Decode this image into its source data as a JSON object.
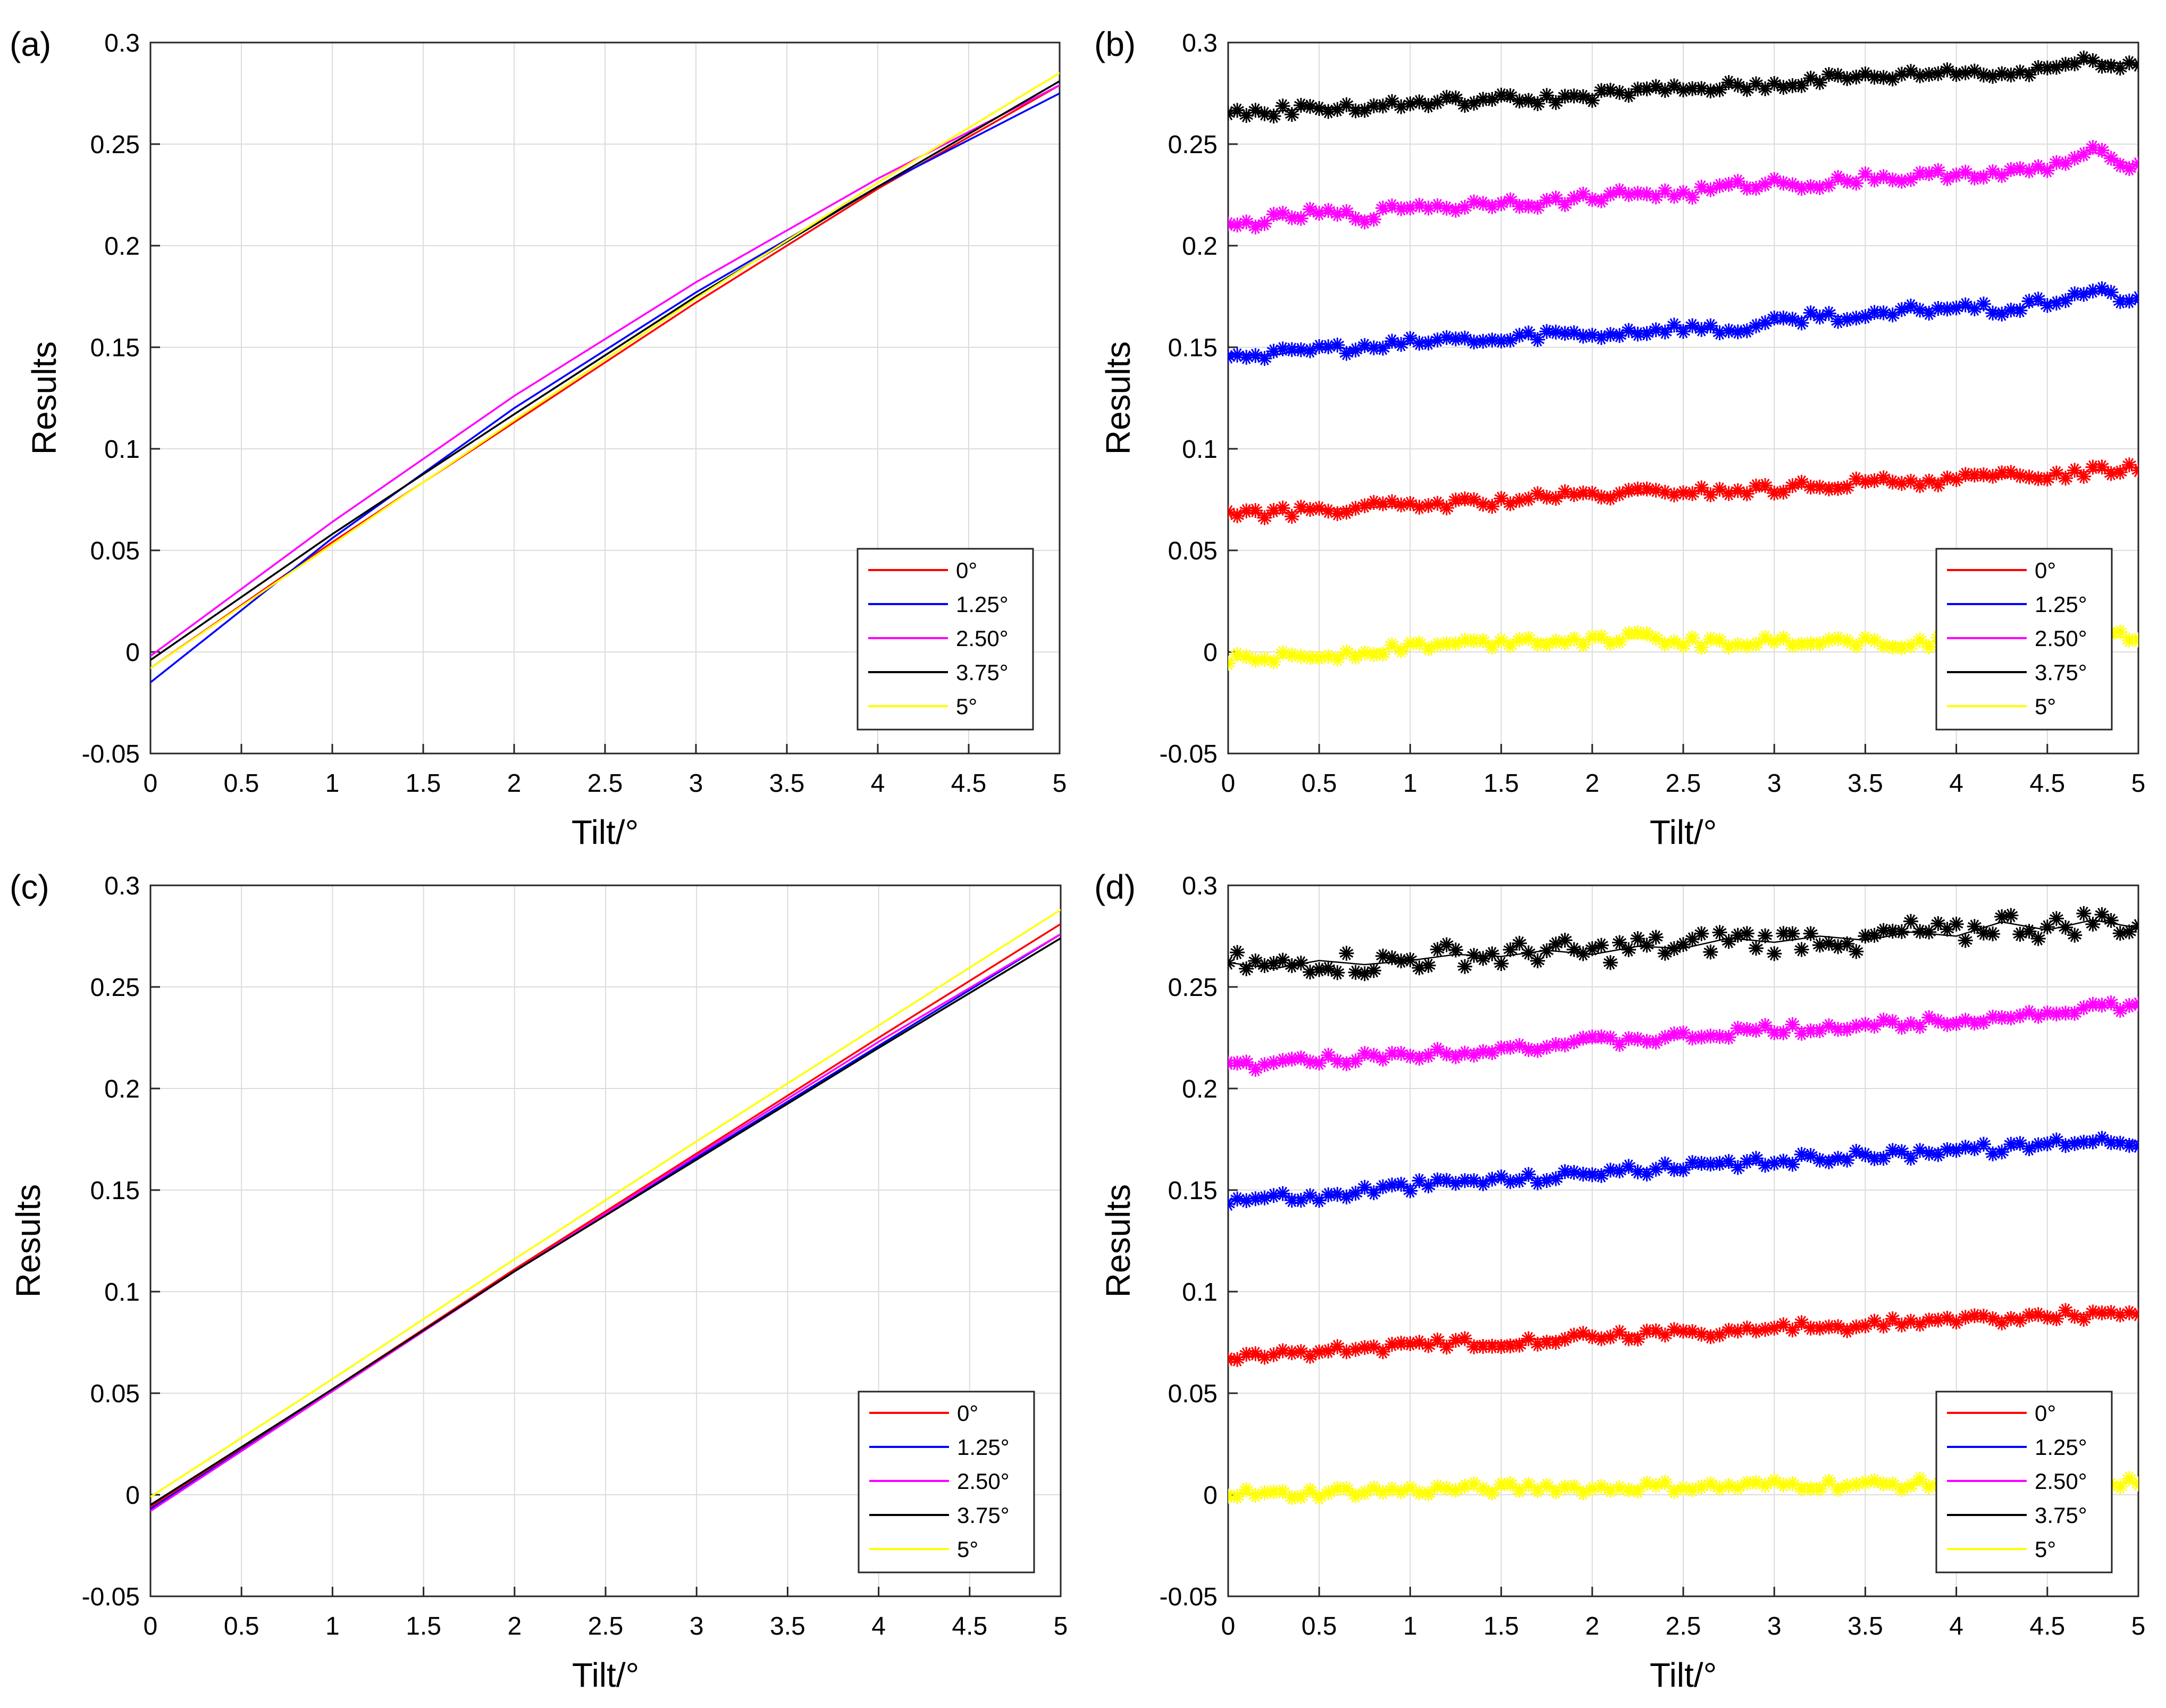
{
  "figure": {
    "panel_labels": [
      "(a)",
      "(b)",
      "(c)",
      "(d)"
    ]
  },
  "colors": {
    "red": "#ff0000",
    "blue": "#0000ff",
    "magenta": "#ff00ff",
    "black": "#000000",
    "yellow": "#ffff00"
  },
  "chart_data": [
    {
      "type": "line",
      "panel": "(a)",
      "xlabel": "Tilt/°",
      "ylabel": "Results",
      "xlim": [
        0,
        5
      ],
      "ylim": [
        -0.05,
        0.3
      ],
      "xticks": [
        "0",
        "0.5",
        "1",
        "1.5",
        "2",
        "2.5",
        "3",
        "3.5",
        "4",
        "4.5",
        "5"
      ],
      "yticks": [
        "-0.05",
        "0",
        "0.05",
        "0.1",
        "0.15",
        "0.2",
        "0.25",
        "0.3"
      ],
      "grid": true,
      "legend_position": "bottom-right",
      "x": [
        0,
        1,
        2,
        3,
        4,
        5
      ],
      "series": [
        {
          "name": "0°",
          "color": "#ff0000",
          "values": [
            -0.008,
            0.054,
            0.113,
            0.172,
            0.228,
            0.279
          ]
        },
        {
          "name": "1.25°",
          "color": "#0000ff",
          "values": [
            -0.015,
            0.056,
            0.12,
            0.177,
            0.229,
            0.275
          ]
        },
        {
          "name": "2.50°",
          "color": "#ff00ff",
          "values": [
            -0.002,
            0.064,
            0.126,
            0.182,
            0.233,
            0.279
          ]
        },
        {
          "name": "3.75°",
          "color": "#000000",
          "values": [
            -0.004,
            0.058,
            0.117,
            0.175,
            0.229,
            0.281
          ]
        },
        {
          "name": "5°",
          "color": "#ffff00",
          "values": [
            -0.008,
            0.053,
            0.114,
            0.174,
            0.231,
            0.285
          ]
        }
      ]
    },
    {
      "type": "line",
      "panel": "(b)",
      "marker": "asterisk",
      "xlabel": "Tilt/°",
      "ylabel": "Results",
      "xlim": [
        0,
        5
      ],
      "ylim": [
        -0.05,
        0.3
      ],
      "xticks": [
        "0",
        "0.5",
        "1",
        "1.5",
        "2",
        "2.5",
        "3",
        "3.5",
        "4",
        "4.5",
        "5"
      ],
      "yticks": [
        "-0.05",
        "0",
        "0.05",
        "0.1",
        "0.15",
        "0.2",
        "0.25",
        "0.3"
      ],
      "grid": true,
      "legend_position": "bottom-right",
      "x": [
        0,
        0.25,
        0.5,
        0.75,
        1,
        1.25,
        1.5,
        1.75,
        2,
        2.25,
        2.5,
        2.75,
        3,
        3.25,
        3.5,
        3.75,
        4,
        4.25,
        4.5,
        4.75,
        5
      ],
      "series": [
        {
          "name": "0°",
          "color": "#ff0000",
          "values": [
            0.069,
            0.068,
            0.07,
            0.071,
            0.072,
            0.073,
            0.074,
            0.076,
            0.077,
            0.078,
            0.079,
            0.079,
            0.08,
            0.082,
            0.083,
            0.084,
            0.085,
            0.086,
            0.087,
            0.089,
            0.091
          ]
        },
        {
          "name": "1.25°",
          "color": "#0000ff",
          "values": [
            0.147,
            0.146,
            0.15,
            0.149,
            0.152,
            0.154,
            0.153,
            0.157,
            0.156,
            0.158,
            0.16,
            0.158,
            0.162,
            0.166,
            0.164,
            0.168,
            0.17,
            0.168,
            0.172,
            0.178,
            0.172
          ]
        },
        {
          "name": "2.50°",
          "color": "#ff00ff",
          "values": [
            0.209,
            0.213,
            0.216,
            0.214,
            0.22,
            0.219,
            0.222,
            0.221,
            0.224,
            0.226,
            0.225,
            0.229,
            0.231,
            0.23,
            0.234,
            0.233,
            0.236,
            0.235,
            0.238,
            0.246,
            0.239
          ]
        },
        {
          "name": "3.75°",
          "color": "#000000",
          "values": [
            0.265,
            0.266,
            0.268,
            0.268,
            0.27,
            0.271,
            0.272,
            0.272,
            0.274,
            0.276,
            0.277,
            0.278,
            0.279,
            0.282,
            0.283,
            0.284,
            0.286,
            0.284,
            0.288,
            0.291,
            0.289
          ]
        },
        {
          "name": "5°",
          "color": "#ffff00",
          "values": [
            -0.004,
            -0.003,
            -0.002,
            0.0,
            0.003,
            0.004,
            0.005,
            0.006,
            0.006,
            0.007,
            0.005,
            0.004,
            0.005,
            0.006,
            0.005,
            0.004,
            0.006,
            0.007,
            0.006,
            0.008,
            0.007
          ]
        }
      ]
    },
    {
      "type": "line",
      "panel": "(c)",
      "xlabel": "Tilt/°",
      "ylabel": "Results",
      "xlim": [
        0,
        5
      ],
      "ylim": [
        -0.05,
        0.3
      ],
      "xticks": [
        "0",
        "0.5",
        "1",
        "1.5",
        "2",
        "2.5",
        "3",
        "3.5",
        "4",
        "4.5",
        "5"
      ],
      "yticks": [
        "-0.05",
        "0",
        "0.05",
        "0.1",
        "0.15",
        "0.2",
        "0.25",
        "0.3"
      ],
      "grid": true,
      "legend_position": "bottom-right",
      "x": [
        0,
        1,
        2,
        3,
        4,
        5
      ],
      "series": [
        {
          "name": "0°",
          "color": "#ff0000",
          "values": [
            -0.006,
            0.052,
            0.111,
            0.168,
            0.225,
            0.281
          ]
        },
        {
          "name": "1.25°",
          "color": "#0000ff",
          "values": [
            -0.007,
            0.051,
            0.11,
            0.166,
            0.221,
            0.276
          ]
        },
        {
          "name": "2.50°",
          "color": "#ff00ff",
          "values": [
            -0.008,
            0.051,
            0.11,
            0.167,
            0.223,
            0.276
          ]
        },
        {
          "name": "3.75°",
          "color": "#000000",
          "values": [
            -0.005,
            0.052,
            0.11,
            0.165,
            0.22,
            0.274
          ]
        },
        {
          "name": "5°",
          "color": "#ffff00",
          "values": [
            -0.001,
            0.057,
            0.116,
            0.174,
            0.231,
            0.288
          ]
        }
      ]
    },
    {
      "type": "line",
      "panel": "(d)",
      "marker": "asterisk",
      "xlabel": "Tilt/°",
      "ylabel": "Results",
      "xlim": [
        0,
        5
      ],
      "ylim": [
        -0.05,
        0.3
      ],
      "xticks": [
        "0",
        "0.5",
        "1",
        "1.5",
        "2",
        "2.5",
        "3",
        "3.5",
        "4",
        "4.5",
        "5"
      ],
      "yticks": [
        "-0.05",
        "0",
        "0.05",
        "0.1",
        "0.15",
        "0.2",
        "0.25",
        "0.3"
      ],
      "grid": true,
      "legend_position": "bottom-right",
      "x": [
        0,
        0.25,
        0.5,
        0.75,
        1,
        1.25,
        1.5,
        1.75,
        2,
        2.25,
        2.5,
        2.75,
        3,
        3.25,
        3.5,
        3.75,
        4,
        4.25,
        4.5,
        4.75,
        5
      ],
      "series": [
        {
          "name": "0°",
          "color": "#ff0000",
          "values": [
            0.067,
            0.069,
            0.071,
            0.072,
            0.073,
            0.075,
            0.075,
            0.077,
            0.078,
            0.079,
            0.08,
            0.08,
            0.082,
            0.083,
            0.083,
            0.085,
            0.086,
            0.087,
            0.088,
            0.089,
            0.09
          ]
        },
        {
          "name": "1.25°",
          "color": "#0000ff",
          "values": [
            0.145,
            0.147,
            0.146,
            0.15,
            0.152,
            0.154,
            0.155,
            0.156,
            0.159,
            0.16,
            0.161,
            0.162,
            0.164,
            0.166,
            0.167,
            0.168,
            0.171,
            0.17,
            0.173,
            0.175,
            0.174
          ]
        },
        {
          "name": "2.50°",
          "color": "#ff00ff",
          "values": [
            0.211,
            0.212,
            0.214,
            0.215,
            0.217,
            0.218,
            0.22,
            0.221,
            0.223,
            0.224,
            0.225,
            0.227,
            0.229,
            0.23,
            0.231,
            0.232,
            0.234,
            0.235,
            0.237,
            0.24,
            0.24
          ]
        },
        {
          "name": "3.75°",
          "color": "#000000",
          "values": [
            0.262,
            0.259,
            0.263,
            0.261,
            0.263,
            0.266,
            0.265,
            0.268,
            0.266,
            0.27,
            0.269,
            0.274,
            0.272,
            0.275,
            0.273,
            0.277,
            0.275,
            0.282,
            0.278,
            0.283,
            0.279
          ]
        },
        {
          "name": "5°",
          "color": "#ffff00",
          "values": [
            0.001,
            0.0,
            0.001,
            0.002,
            0.002,
            0.003,
            0.003,
            0.004,
            0.003,
            0.004,
            0.004,
            0.004,
            0.005,
            0.005,
            0.005,
            0.005,
            0.006,
            0.006,
            0.006,
            0.006,
            0.006
          ]
        }
      ]
    }
  ]
}
